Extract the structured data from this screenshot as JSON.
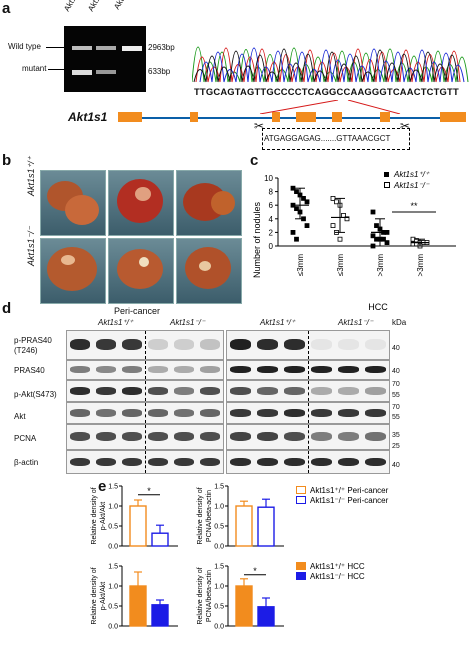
{
  "panels": {
    "a": "a",
    "b": "b",
    "c": "c",
    "d": "d",
    "e": "e"
  },
  "panel_a": {
    "lanes": [
      "Akt1s1⁻/⁻",
      "Akt1s1⁺/⁻",
      "Akt1s1⁺/⁺"
    ],
    "band_labels": {
      "wild_type": "Wild type",
      "mutant": "mutant"
    },
    "sizes": {
      "wt": "2963bp",
      "mut": "633bp"
    },
    "sequence": "TTGCAGTAGTTGCCCCTCAGGCCAAGGGTCAACTCTGTT",
    "gene": "Akt1s1",
    "insert_seq": "ATGAGGAGAG.......GTTAAACGCT"
  },
  "panel_b": {
    "rows": [
      "Akt1s1⁺/⁺",
      "Akt1s1⁻/⁻"
    ],
    "caption": "Peri-cancer",
    "hcc": "HCC"
  },
  "panel_c": {
    "ylabel": "Number of nodules",
    "yticks": [
      "0",
      "2",
      "4",
      "6",
      "8",
      "10"
    ],
    "xticks": [
      "≤3mm",
      "≤3mm",
      ">3mm",
      ">3mm"
    ],
    "legend": [
      "Akt1s1⁺/⁺",
      "Akt1s1⁻/⁻"
    ],
    "sig": "**"
  },
  "chart_data": [
    {
      "type": "scatter",
      "title": "",
      "ylabel": "Number of nodules",
      "ylim": [
        0,
        10
      ],
      "categories": [
        "≤3mm",
        "≤3mm",
        ">3mm",
        ">3mm"
      ],
      "series": [
        {
          "name": "Akt1s1+/+",
          "marker": "filled-square",
          "groups": [
            0,
            2
          ],
          "points": [
            [
              8.5,
              8.0,
              7.5,
              7.0,
              6.5,
              6.0,
              5.5,
              5.0,
              4.0,
              3.0,
              2.0,
              1.0
            ],
            [
              5.0,
              3.0,
              2.5,
              2.0,
              2.0,
              1.5,
              1.0,
              1.0,
              1.0,
              0.5,
              0.0
            ]
          ],
          "mean": [
            6.0,
            2.0
          ],
          "sd_low": [
            4.0,
            0.0
          ],
          "sd_high": [
            8.5,
            4.0
          ]
        },
        {
          "name": "Akt1s1-/-",
          "marker": "open-square",
          "groups": [
            1,
            3
          ],
          "points": [
            [
              7.0,
              6.5,
              6.0,
              4.5,
              4.0,
              3.0,
              2.0,
              1.0
            ],
            [
              1.0,
              0.8,
              0.5,
              0.5,
              0.5,
              0.3,
              0.3,
              0.0
            ]
          ],
          "mean": [
            4.2,
            0.5
          ],
          "sd_low": [
            2.0,
            0.0
          ],
          "sd_high": [
            7.0,
            1.0
          ]
        }
      ],
      "annotations": [
        "**"
      ]
    },
    {
      "type": "bar",
      "ylabel": "Relative density of p-Akt/Akt",
      "ylim": [
        0,
        1.5
      ],
      "yticks": [
        "0.0",
        "0.5",
        "1.0",
        "1.5"
      ],
      "series": [
        {
          "name": "Akt1s1+/+ Peri-cancer",
          "value": 1.0,
          "err": 0.15
        },
        {
          "name": "Akt1s1-/- Peri-cancer",
          "value": 0.32,
          "err": 0.2
        }
      ],
      "annotations": [
        "*"
      ]
    },
    {
      "type": "bar",
      "ylabel": "Relative density of PCNA/beta-actin",
      "ylim": [
        0,
        1.5
      ],
      "yticks": [
        "0.0",
        "0.5",
        "1.0",
        "1.5"
      ],
      "series": [
        {
          "name": "Akt1s1+/+ Peri-cancer",
          "value": 1.0,
          "err": 0.12
        },
        {
          "name": "Akt1s1-/- Peri-cancer",
          "value": 0.97,
          "err": 0.2
        }
      ]
    },
    {
      "type": "bar",
      "ylabel": "Relative density of p-Akt/Akt",
      "ylim": [
        0,
        1.5
      ],
      "yticks": [
        "0.0",
        "0.5",
        "1.0",
        "1.5"
      ],
      "series": [
        {
          "name": "Akt1s1+/+ HCC",
          "value": 1.0,
          "err": 0.35
        },
        {
          "name": "Akt1s1-/- HCC",
          "value": 0.53,
          "err": 0.12
        }
      ]
    },
    {
      "type": "bar",
      "ylabel": "Relative density of PCNA/beta-actin",
      "ylim": [
        0,
        1.5
      ],
      "yticks": [
        "0.0",
        "0.5",
        "1.0",
        "1.5"
      ],
      "series": [
        {
          "name": "Akt1s1+/+ HCC",
          "value": 1.0,
          "err": 0.18
        },
        {
          "name": "Akt1s1-/- HCC",
          "value": 0.48,
          "err": 0.22
        }
      ],
      "annotations": [
        "*"
      ]
    }
  ],
  "panel_d": {
    "rows": [
      "p-PRAS40\n(T246)",
      "PRAS40",
      "p-Akt(S473)",
      "Akt",
      "PCNA",
      "β-actin"
    ],
    "row1": "p-PRAS40",
    "row1b": "(T246)",
    "groups": [
      "Akt1s1⁺/⁺",
      "Akt1s1⁻/⁻",
      "Akt1s1⁺/⁺",
      "Akt1s1⁻/⁻"
    ],
    "kda": "kDa",
    "markers": [
      "40",
      "40",
      "70",
      "55",
      "70",
      "55",
      "35",
      "25",
      "40"
    ]
  },
  "panel_e": {
    "legend_peri": [
      "Akt1s1⁺/⁺ Peri-cancer",
      "Akt1s1⁻/⁻ Peri-cancer"
    ],
    "legend_hcc": [
      "Akt1s1⁺/⁺ HCC",
      "Akt1s1⁻/⁻ HCC"
    ],
    "ylabel_akt": "Relative density of\np-Akt/Akt",
    "ylabel_pcna": "Relative density of\nPCNA/beta-actin",
    "colors": {
      "wt": "#f28c1e",
      "ko": "#1c1ce6"
    },
    "yticks": [
      "0.0",
      "0.5",
      "1.0",
      "1.5"
    ],
    "sig": "*"
  }
}
